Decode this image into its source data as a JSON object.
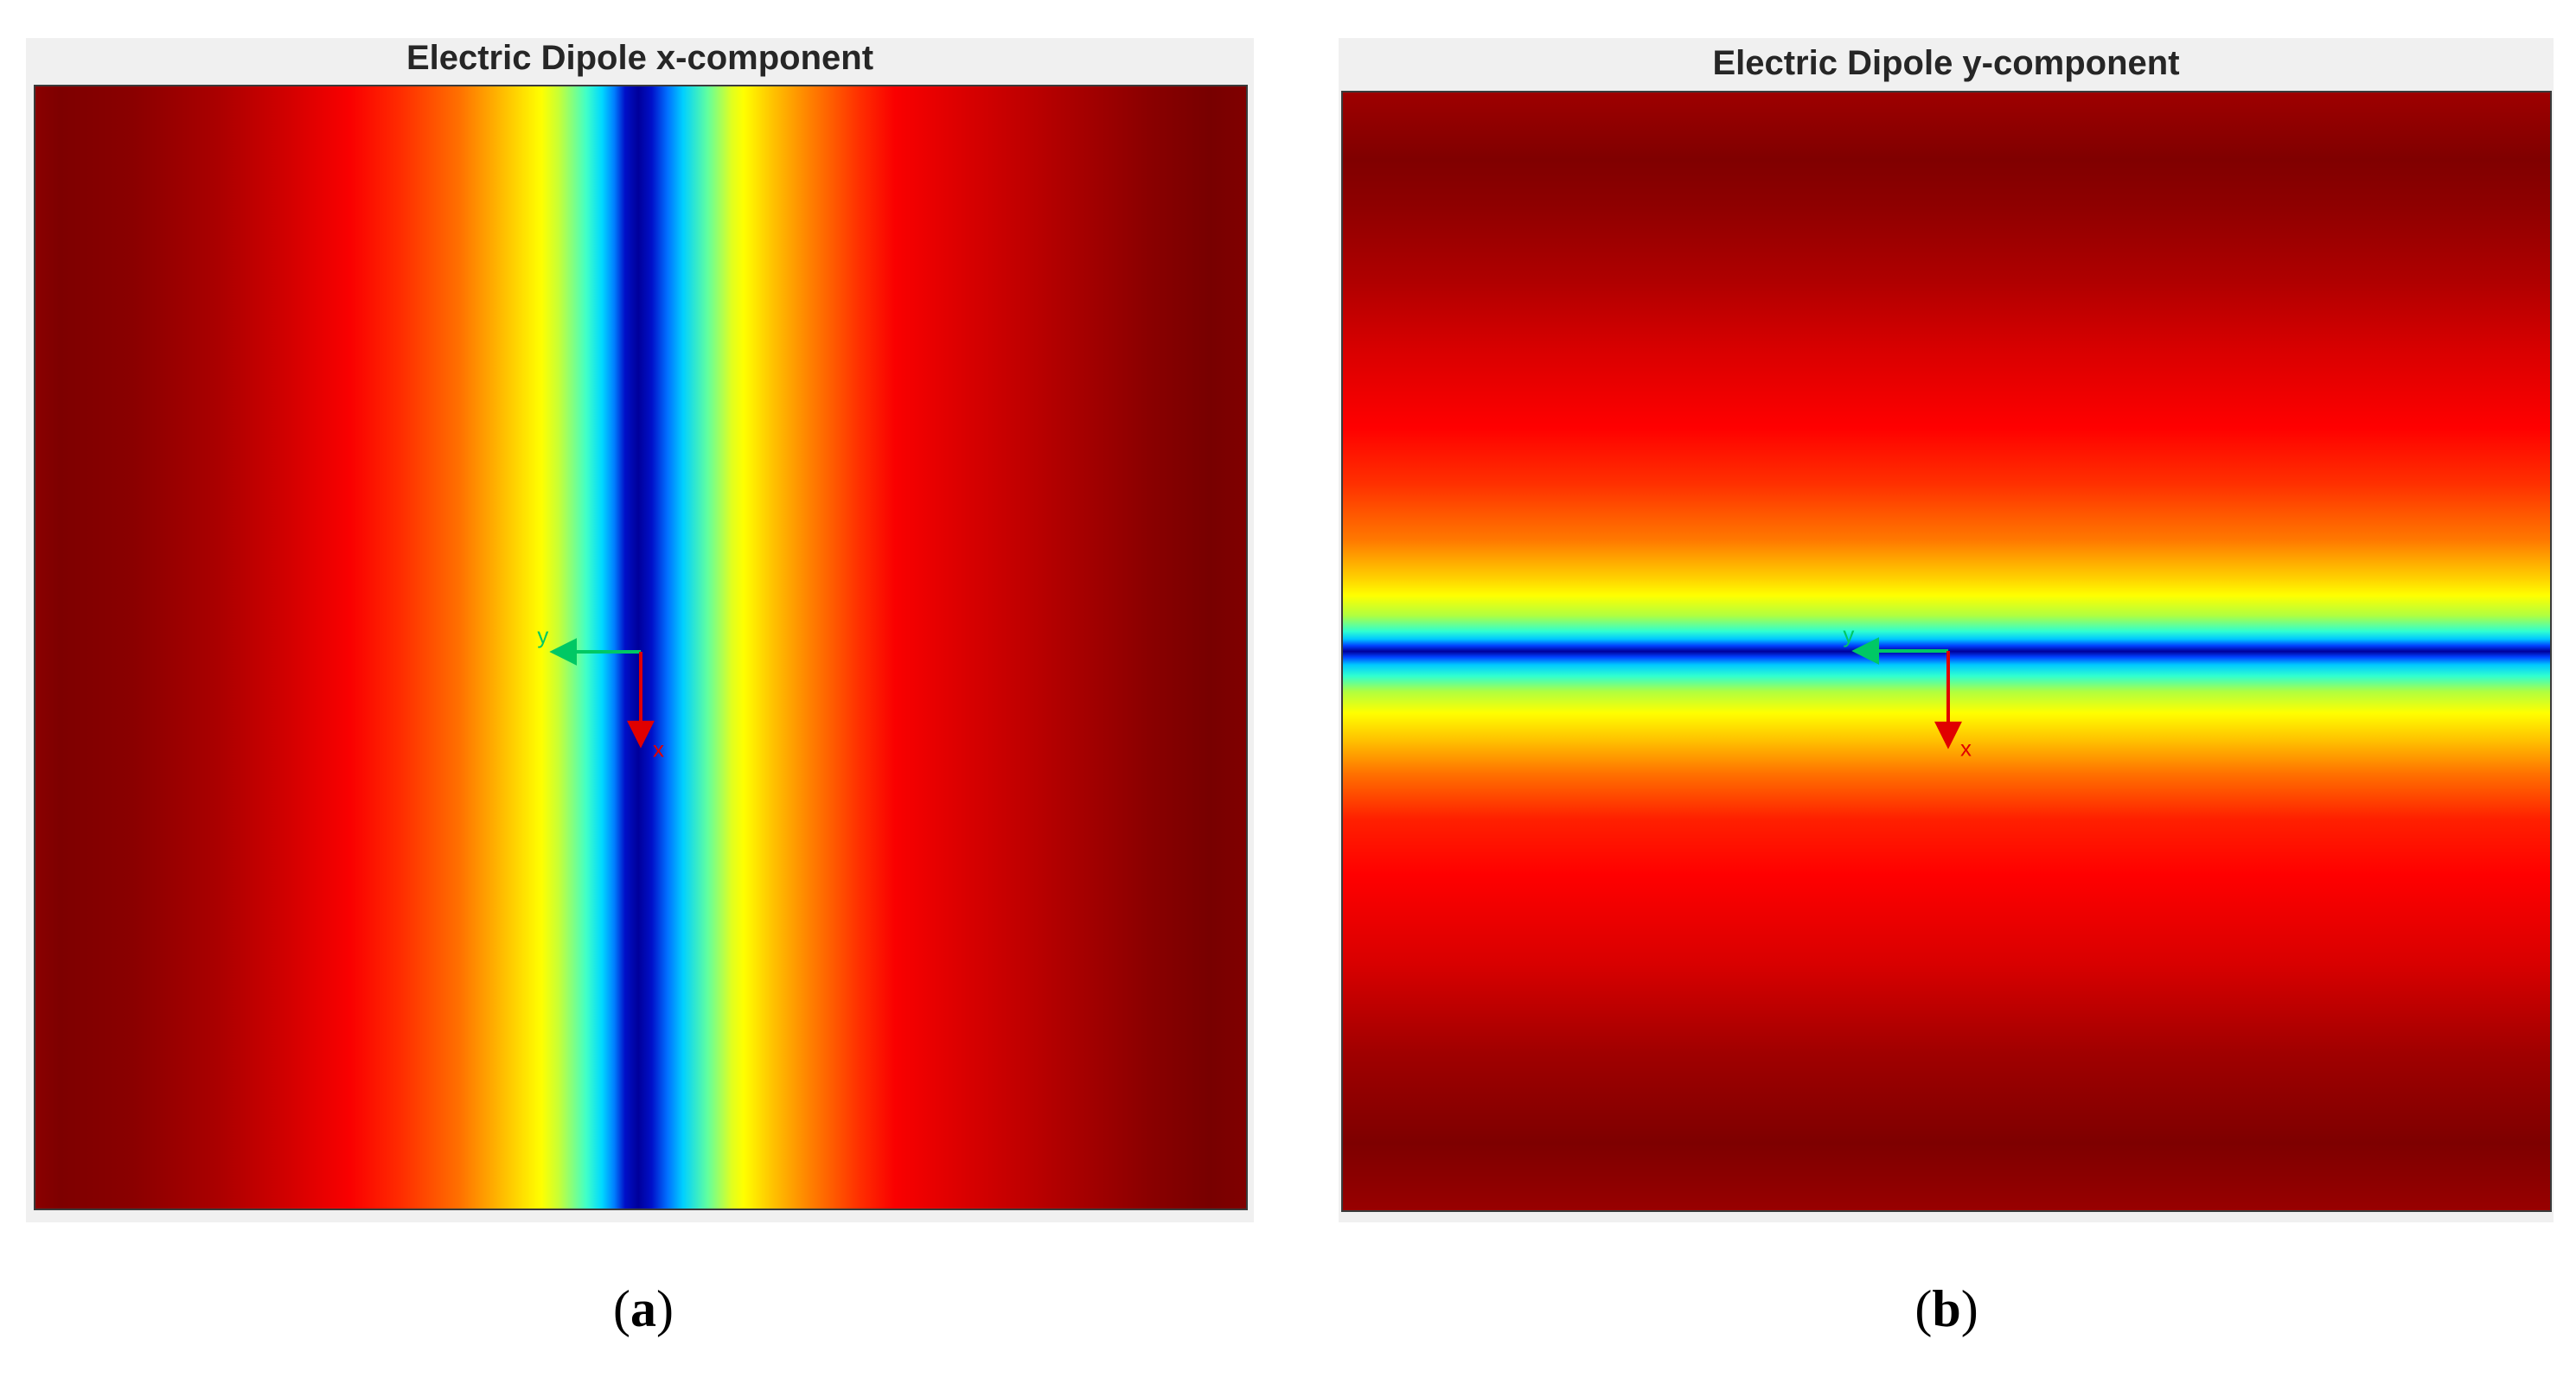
{
  "panels": {
    "a": {
      "title": "Electric Dipole x-component",
      "caption_letter": "a",
      "axis_x_label": "x",
      "axis_y_label": "y"
    },
    "b": {
      "title": "Electric Dipole y-component",
      "caption_letter": "b",
      "axis_x_label": "x",
      "axis_y_label": "y"
    }
  },
  "colors": {
    "x_axis_arrow": "#e00000",
    "y_axis_arrow": "#00c864",
    "colormap": "jet"
  }
}
